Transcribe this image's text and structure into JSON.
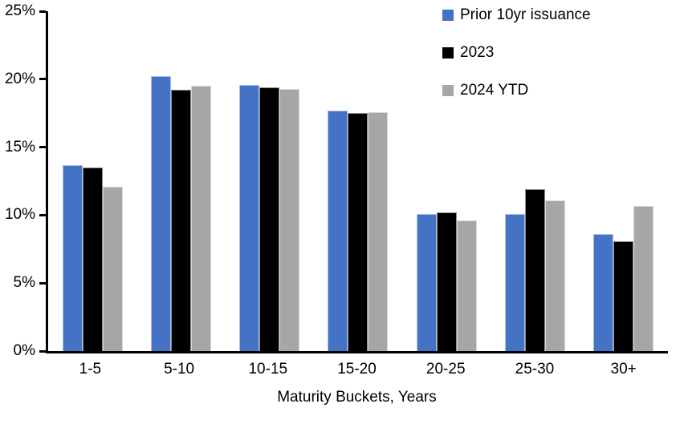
{
  "chart_data": {
    "type": "bar",
    "title": "",
    "xlabel": "Maturity Buckets, Years",
    "ylabel": "",
    "ylim": [
      0,
      25
    ],
    "y_ticks": [
      0,
      5,
      10,
      15,
      20,
      25
    ],
    "y_tick_labels": [
      "0%",
      "5%",
      "10%",
      "15%",
      "20%",
      "25%"
    ],
    "categories": [
      "1-5",
      "5-10",
      "10-15",
      "15-20",
      "20-25",
      "25-30",
      "30+"
    ],
    "series": [
      {
        "name": "Prior 10yr issuance",
        "color": "#4472C4",
        "values": [
          13.7,
          20.2,
          19.6,
          17.7,
          10.1,
          10.1,
          8.6
        ]
      },
      {
        "name": "2023",
        "color": "#000000",
        "values": [
          13.5,
          19.2,
          19.4,
          17.5,
          10.2,
          11.9,
          8.1
        ]
      },
      {
        "name": "2024 YTD",
        "color": "#A6A6A6",
        "values": [
          12.1,
          19.5,
          19.3,
          17.6,
          9.6,
          11.1,
          10.7
        ]
      }
    ],
    "legend_position": "top-right",
    "grid": false,
    "axis_color": "#000000",
    "background_color": "#FFFFFF"
  }
}
